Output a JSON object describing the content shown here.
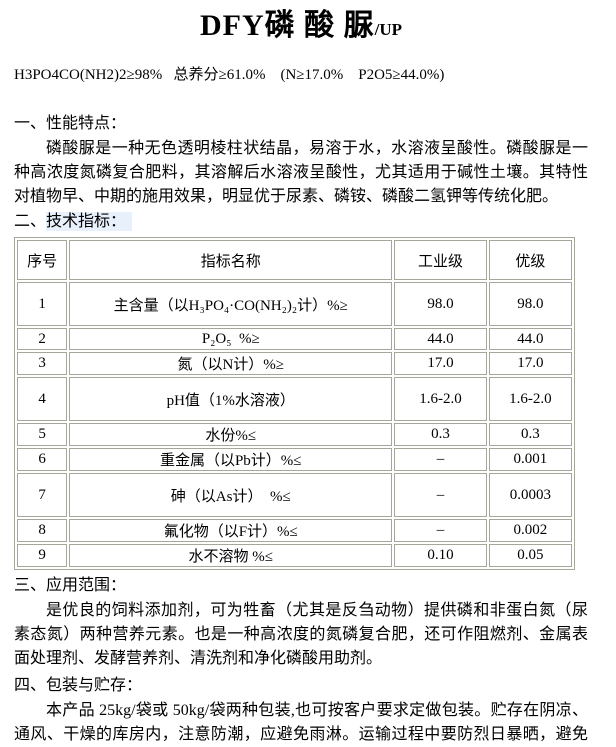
{
  "header": {
    "title_main": "DFY磷 酸 脲",
    "title_suffix": "/UP",
    "formula_line": "H3PO4CO(NH2)2≥98%   总养分≥61.0%    (N≥17.0%    P2O5≥44.0%)"
  },
  "sections": {
    "performance": {
      "heading": "一、性能特点：",
      "body": "磷酸脲是一种无色透明棱柱状结晶，易溶于水，水溶液呈酸性。磷酸脲是一种高浓度氮磷复合肥料，其溶解后水溶液呈酸性，尤其适用于碱性土壤。其特性对植物早、中期的施用效果，明显优于尿素、磷铵、磷酸二氢钾等传统化肥。"
    },
    "technical": {
      "heading_prefix": "二、",
      "heading_text": "技术指标："
    },
    "application": {
      "heading": "三、应用范围：",
      "body": "是优良的饲料添加剂，可为牲畜（尤其是反刍动物）提供磷和非蛋白氮（尿素态氮）两种营养元素。也是一种高浓度的氮磷复合肥，还可作阻燃剂、金属表面处理剂、发酵营养剂、清洗剂和净化磷酸用助剂。"
    },
    "packaging": {
      "heading": "四、包装与贮存：",
      "body": "本产品 25kg/袋或 50kg/袋两种包装,也可按客户要求定做包装。贮存在阴凉、通风、干燥的库房内，注意防潮，应避免雨淋。运输过程中要防烈日暴晒，避免雨淋。"
    }
  },
  "table": {
    "headers": [
      "序号",
      "指标名称",
      "工业级",
      "优级"
    ],
    "rows": [
      {
        "no": "1",
        "name": "主含量（以H₃PO₄·CO(NH₂)₂计）%≥",
        "industrial": "98.0",
        "premium": "98.0"
      },
      {
        "no": "2",
        "name": "P₂O₅  %≥",
        "industrial": "44.0",
        "premium": "44.0"
      },
      {
        "no": "3",
        "name": "氮（以N计）%≥",
        "industrial": "17.0",
        "premium": "17.0"
      },
      {
        "no": "4",
        "name": "pH值（1%水溶液）",
        "industrial": "1.6-2.0",
        "premium": "1.6-2.0"
      },
      {
        "no": "5",
        "name": "水份%≤",
        "industrial": "0.3",
        "premium": "0.3"
      },
      {
        "no": "6",
        "name": "重金属（以Pb计）%≤",
        "industrial": "–",
        "premium": "0.001"
      },
      {
        "no": "7",
        "name": "砷（以As计）  %≤",
        "industrial": "–",
        "premium": "0.0003"
      },
      {
        "no": "8",
        "name": "氟化物（以F计）%≤",
        "industrial": "–",
        "premium": "0.002"
      },
      {
        "no": "9",
        "name": "水不溶物 %≤",
        "industrial": "0.10",
        "premium": "0.05"
      }
    ]
  },
  "colors": {
    "page_bg": "#ffffff",
    "text": "#000000",
    "table_border": "#a6a69a",
    "heading_highlight_bg": "#e8f1fb"
  }
}
